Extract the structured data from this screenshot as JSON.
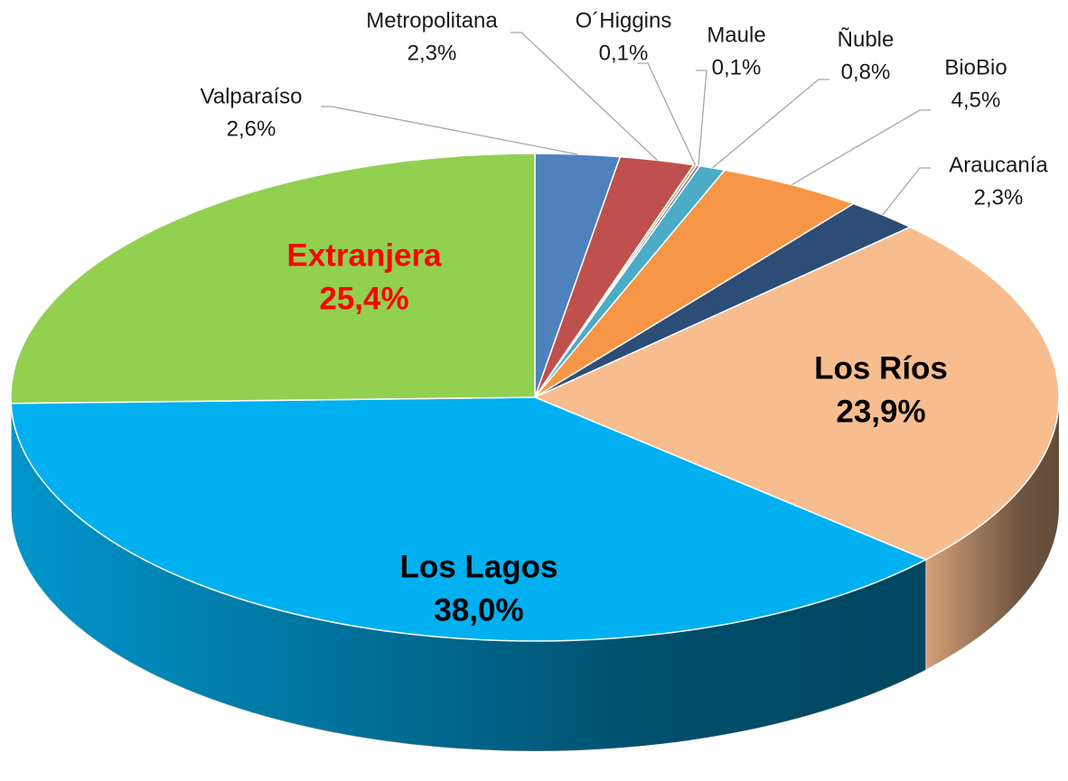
{
  "chart_data": {
    "type": "pie",
    "categories": [
      "Valparaíso",
      "Metropolitana",
      "O´Higgins",
      "Maule",
      "Ñuble",
      "BioBio",
      "Araucanía",
      "Los Ríos",
      "Los Lagos",
      "Extranjera"
    ],
    "values": [
      2.6,
      2.3,
      0.1,
      0.1,
      0.8,
      4.5,
      2.3,
      23.9,
      38.0,
      25.4
    ],
    "value_labels": [
      "2,6%",
      "2,3%",
      "0,1%",
      "0,1%",
      "0,8%",
      "4,5%",
      "2,3%",
      "23,9%",
      "38,0%",
      "25,4%"
    ],
    "colors": [
      "#4f81bd",
      "#c0504d",
      "#9bbb59",
      "#8064a2",
      "#4bacc6",
      "#f79646",
      "#2c4d75",
      "#f8bd8e",
      "#00b0f0",
      "#92d050"
    ],
    "label_colors": [
      "#1a1a1a",
      "#1a1a1a",
      "#1a1a1a",
      "#1a1a1a",
      "#1a1a1a",
      "#1a1a1a",
      "#1a1a1a",
      "#000000",
      "#000000",
      "#ff0000"
    ]
  }
}
